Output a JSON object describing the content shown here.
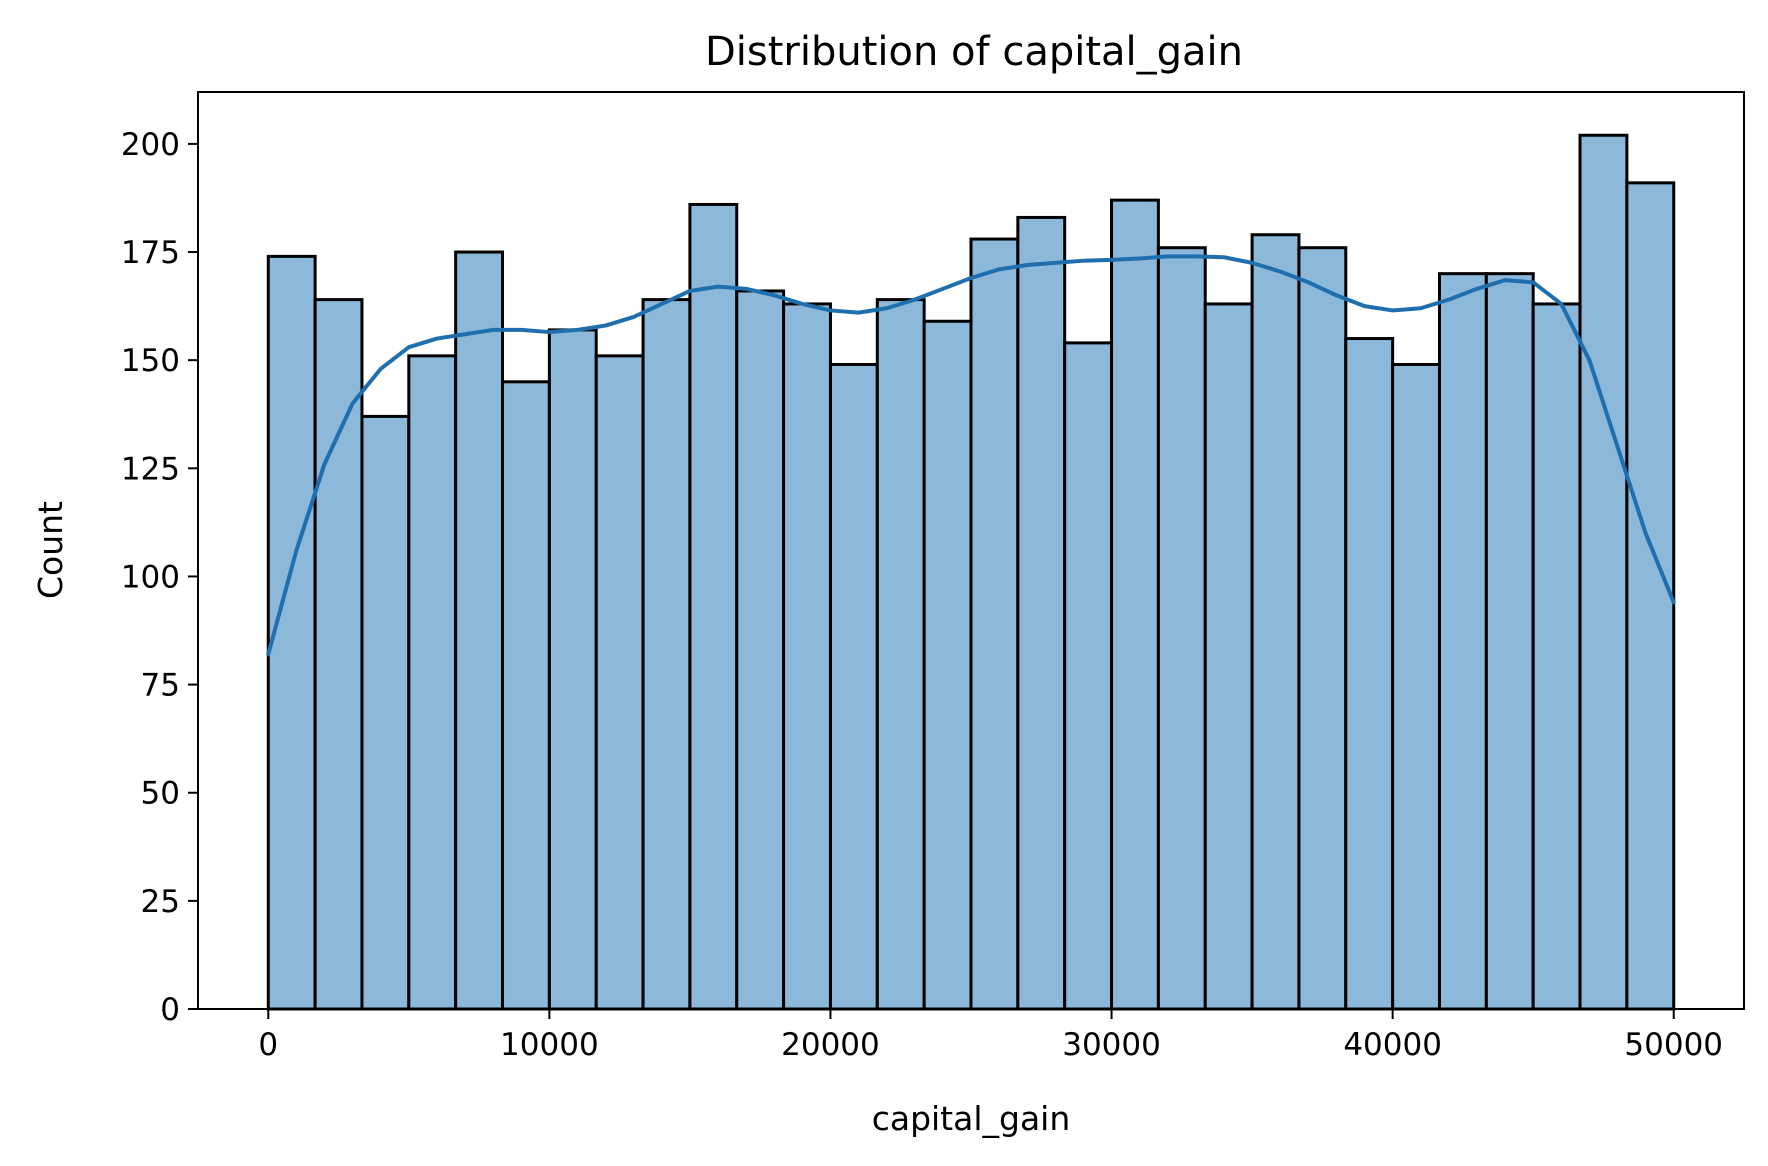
{
  "chart_data": {
    "type": "bar",
    "subtype": "histogram with KDE",
    "title": "Distribution of capital_gain",
    "xlabel": "capital_gain",
    "ylabel": "Count",
    "xlim": [
      -2500,
      52500
    ],
    "ylim": [
      0,
      212
    ],
    "xticks": [
      0,
      10000,
      20000,
      30000,
      40000,
      50000
    ],
    "yticks": [
      0,
      25,
      50,
      75,
      100,
      125,
      150,
      175,
      200
    ],
    "grid": false,
    "bins": {
      "start": 0,
      "end": 50000,
      "counts": [
        174,
        164,
        137,
        151,
        175,
        145,
        157,
        151,
        164,
        186,
        166,
        163,
        149,
        164,
        159,
        178,
        183,
        154,
        187,
        176,
        163,
        179,
        176,
        155,
        149,
        170,
        170,
        163,
        202,
        191
      ]
    },
    "kde": {
      "x": [
        0,
        1000,
        2000,
        3000,
        4000,
        5000,
        6000,
        7000,
        8000,
        9000,
        10000,
        11000,
        12000,
        13000,
        14000,
        15000,
        16000,
        17000,
        18000,
        19000,
        20000,
        21000,
        22000,
        23000,
        24000,
        25000,
        26000,
        27000,
        28000,
        29000,
        30000,
        31000,
        32000,
        33000,
        34000,
        35000,
        36000,
        37000,
        38000,
        39000,
        40000,
        41000,
        42000,
        43000,
        44000,
        45000,
        46000,
        47000,
        48000,
        49000,
        50000
      ],
      "y": [
        82,
        106,
        126,
        140,
        148,
        153,
        155,
        156,
        157,
        157,
        156.5,
        157,
        158,
        160,
        163,
        166,
        167,
        166.5,
        165,
        163,
        161.5,
        161,
        162,
        164,
        166.5,
        169,
        171,
        172,
        172.5,
        173,
        173.2,
        173.5,
        174,
        174,
        173.8,
        172.5,
        170.5,
        168,
        165,
        162.5,
        161.5,
        162,
        164,
        166.5,
        168.5,
        168,
        163,
        150,
        130,
        110,
        94
      ]
    },
    "colors": {
      "bar_fill": "#8cb8d9",
      "bar_edge": "#000000",
      "kde_line": "#1f6fae"
    }
  }
}
